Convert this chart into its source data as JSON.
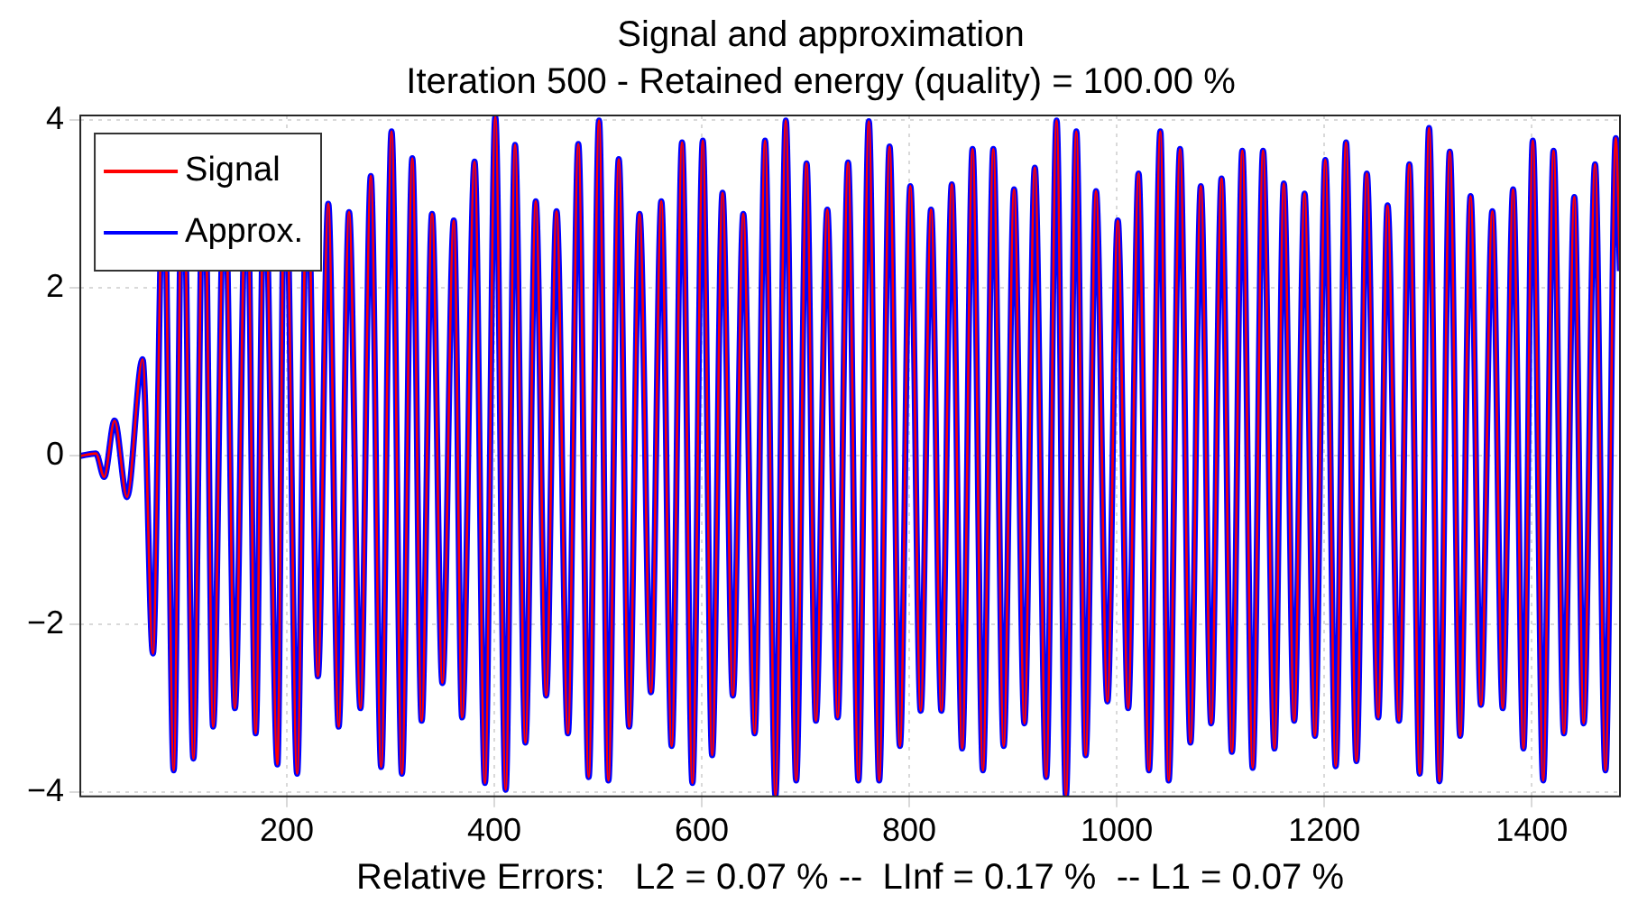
{
  "chart_data": {
    "type": "line",
    "title": "Signal and approximation",
    "subtitle": "Iteration 500 - Retained energy (quality) = 100.00 %",
    "xlabel": "Relative Errors:   L2 = 0.07 % --  LInf = 0.17 %  -- L1 = 0.07 %",
    "x": [
      1,
      16,
      24,
      34,
      46,
      61,
      71,
      78,
      81,
      84,
      91,
      97,
      100,
      103,
      110,
      117,
      120,
      123,
      129,
      137,
      140,
      143,
      150,
      158,
      161,
      164,
      170,
      176,
      179,
      182,
      191,
      196,
      199,
      202,
      210,
      217,
      220,
      223,
      230,
      240,
      250,
      260,
      271,
      281,
      291,
      301,
      311,
      321,
      330,
      340,
      350,
      361,
      369,
      381,
      391,
      401,
      411,
      420,
      430,
      440,
      450,
      460,
      471,
      481,
      491,
      501,
      510,
      520,
      530,
      540,
      551,
      561,
      571,
      581,
      591,
      601,
      610,
      620,
      630,
      640,
      651,
      661,
      671,
      681,
      691,
      701,
      710,
      721,
      731,
      741,
      751,
      761,
      771,
      781,
      791,
      801,
      811,
      821,
      831,
      841,
      851,
      861,
      871,
      881,
      891,
      901,
      911,
      921,
      932,
      942,
      951,
      961,
      970,
      980,
      991,
      1001,
      1011,
      1021,
      1031,
      1042,
      1050,
      1061,
      1071,
      1081,
      1091,
      1101,
      1111,
      1121,
      1131,
      1141,
      1152,
      1161,
      1171,
      1181,
      1191,
      1201,
      1211,
      1221,
      1231,
      1241,
      1252,
      1261,
      1272,
      1282,
      1292,
      1301,
      1311,
      1321,
      1331,
      1341,
      1351,
      1362,
      1372,
      1382,
      1392,
      1401,
      1411,
      1421,
      1431,
      1441,
      1450,
      1461,
      1471,
      1481,
      1485
    ],
    "series": [
      {
        "name": "Signal",
        "color": "#ff0000",
        "values": [
          0,
          0.03,
          -0.25,
          0.42,
          -0.49,
          1.15,
          -2.35,
          2.2,
          null,
          2.2,
          -3.74,
          2.2,
          null,
          2.2,
          -3.6,
          2.2,
          null,
          2.2,
          -3.22,
          2.2,
          null,
          2.2,
          -3.0,
          2.2,
          null,
          2.2,
          -3.3,
          2.2,
          null,
          2.2,
          -3.67,
          2.2,
          null,
          2.2,
          -3.78,
          2.2,
          null,
          2.2,
          -2.62,
          3.0,
          -3.22,
          2.9,
          -3.0,
          3.33,
          -3.7,
          3.86,
          -3.78,
          3.54,
          -3.15,
          2.88,
          -2.7,
          2.8,
          -3.11,
          3.5,
          -3.89,
          4.03,
          -3.97,
          3.7,
          -3.41,
          3.03,
          -2.85,
          2.91,
          -3.3,
          3.71,
          -3.82,
          3.99,
          -3.86,
          3.53,
          -3.22,
          2.88,
          -2.81,
          3.03,
          -3.45,
          3.73,
          -3.89,
          3.75,
          -3.56,
          3.13,
          -2.85,
          2.88,
          -3.3,
          3.75,
          -4.04,
          3.99,
          -3.86,
          3.48,
          -3.15,
          2.93,
          -3.11,
          3.49,
          -3.86,
          3.98,
          -3.86,
          3.68,
          -3.45,
          3.21,
          -3.03,
          2.93,
          -3.03,
          3.23,
          -3.48,
          3.65,
          -3.74,
          3.65,
          -3.45,
          3.17,
          -3.18,
          3.43,
          -3.82,
          3.99,
          -4.04,
          3.86,
          -3.56,
          3.15,
          -2.92,
          2.8,
          -3.0,
          3.36,
          -3.74,
          3.86,
          -3.86,
          3.65,
          -3.41,
          3.21,
          -3.18,
          3.3,
          -3.52,
          3.63,
          -3.71,
          3.63,
          -3.48,
          3.24,
          -3.15,
          3.12,
          -3.33,
          3.52,
          -3.69,
          3.73,
          -3.63,
          3.36,
          -3.11,
          2.98,
          -3.15,
          3.47,
          -3.78,
          3.9,
          -3.87,
          3.62,
          -3.33,
          3.09,
          -2.96,
          2.91,
          -3.0,
          3.17,
          -3.48,
          3.75,
          -3.86,
          3.63,
          -3.3,
          3.08,
          -3.18,
          3.47,
          -3.74,
          3.78,
          2.2
        ]
      },
      {
        "name": "Approx.",
        "color": "#0000ff",
        "values": [
          0,
          0.03,
          -0.25,
          0.42,
          -0.49,
          1.15,
          -2.35,
          2.2,
          null,
          2.2,
          -3.74,
          2.2,
          null,
          2.2,
          -3.6,
          2.2,
          null,
          2.2,
          -3.22,
          2.2,
          null,
          2.2,
          -3.0,
          2.2,
          null,
          2.2,
          -3.3,
          2.2,
          null,
          2.2,
          -3.67,
          2.2,
          null,
          2.2,
          -3.78,
          2.2,
          null,
          2.2,
          -2.62,
          3.0,
          -3.22,
          2.9,
          -3.0,
          3.33,
          -3.7,
          3.86,
          -3.78,
          3.54,
          -3.15,
          2.88,
          -2.7,
          2.8,
          -3.11,
          3.5,
          -3.89,
          4.03,
          -3.97,
          3.7,
          -3.41,
          3.03,
          -2.85,
          2.91,
          -3.3,
          3.71,
          -3.82,
          3.99,
          -3.86,
          3.53,
          -3.22,
          2.88,
          -2.81,
          3.03,
          -3.45,
          3.73,
          -3.89,
          3.75,
          -3.56,
          3.13,
          -2.85,
          2.88,
          -3.3,
          3.75,
          -4.04,
          3.99,
          -3.86,
          3.48,
          -3.15,
          2.93,
          -3.11,
          3.49,
          -3.86,
          3.98,
          -3.86,
          3.68,
          -3.45,
          3.21,
          -3.03,
          2.93,
          -3.03,
          3.23,
          -3.48,
          3.65,
          -3.74,
          3.65,
          -3.45,
          3.17,
          -3.18,
          3.43,
          -3.82,
          3.99,
          -4.04,
          3.86,
          -3.56,
          3.15,
          -2.92,
          2.8,
          -3.0,
          3.36,
          -3.74,
          3.86,
          -3.86,
          3.65,
          -3.41,
          3.21,
          -3.18,
          3.3,
          -3.52,
          3.63,
          -3.71,
          3.63,
          -3.48,
          3.24,
          -3.15,
          3.12,
          -3.33,
          3.52,
          -3.69,
          3.73,
          -3.63,
          3.36,
          -3.11,
          2.98,
          -3.15,
          3.47,
          -3.78,
          3.9,
          -3.87,
          3.62,
          -3.33,
          3.09,
          -2.96,
          2.91,
          -3.0,
          3.17,
          -3.48,
          3.75,
          -3.86,
          3.63,
          -3.3,
          3.08,
          -3.18,
          3.47,
          -3.74,
          3.78,
          2.2
        ]
      }
    ],
    "xlim": [
      1,
      1485
    ],
    "xticks": [
      200,
      400,
      600,
      800,
      1000,
      1200,
      1400
    ],
    "ylim": [
      -4.05,
      4.05
    ],
    "yticks": [
      -4,
      -2,
      0,
      2,
      4
    ],
    "grid": true,
    "legend": "top left",
    "marker": "none",
    "line_style": "solid"
  }
}
